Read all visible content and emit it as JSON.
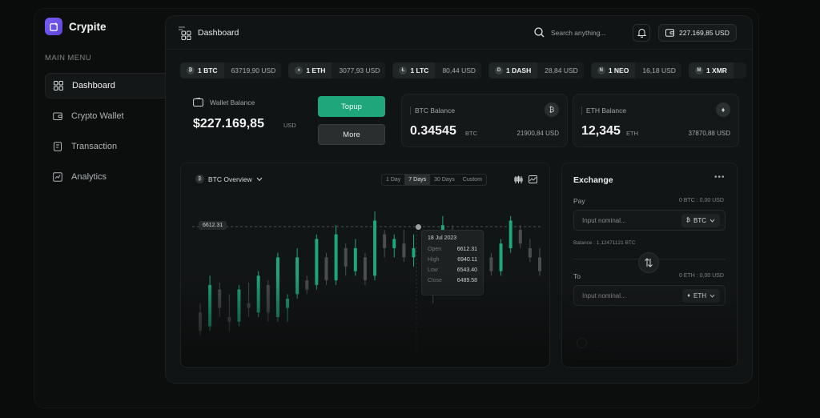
{
  "brand": {
    "name": "Crypite"
  },
  "sidebar": {
    "section_title": "MAIN MENU",
    "items": [
      {
        "label": "Dashboard",
        "icon": "grid-icon",
        "active": true
      },
      {
        "label": "Crypto Wallet",
        "icon": "wallet-icon",
        "active": false
      },
      {
        "label": "Transaction",
        "icon": "receipt-icon",
        "active": false
      },
      {
        "label": "Analytics",
        "icon": "chart-icon",
        "active": false
      }
    ]
  },
  "header": {
    "title": "Dashboard",
    "search_placeholder": "Search anything...",
    "wallet_amount": "227.169,85 USD"
  },
  "ticker": [
    {
      "coin": "1 BTC",
      "symbol": "₿",
      "price": "63719,90 USD"
    },
    {
      "coin": "1 ETH",
      "symbol": "♦",
      "price": "3077,93 USD"
    },
    {
      "coin": "1 LTC",
      "symbol": "Ł",
      "price": "80,44 USD"
    },
    {
      "coin": "1 DASH",
      "symbol": "D",
      "price": "28,84 USD"
    },
    {
      "coin": "1 NEO",
      "symbol": "N",
      "price": "16,18 USD"
    },
    {
      "coin": "1 XMR",
      "symbol": "M",
      "price": ""
    }
  ],
  "wallet_card": {
    "label": "Wallet Balance",
    "value": "$227.169,85",
    "unit": "USD",
    "topup_label": "Topup",
    "more_label": "More"
  },
  "btc_card": {
    "label": "BTC Balance",
    "value": "0.34545",
    "unit": "BTC",
    "usd": "21900,84 USD"
  },
  "eth_card": {
    "label": "ETH Balance",
    "value": "12,345",
    "unit": "ETH",
    "usd": "37870,88 USD"
  },
  "overview": {
    "selector_label": "BTC Overview",
    "ranges": [
      "1 Day",
      "7 Days",
      "30 Days",
      "Custom"
    ],
    "active_range": "7 Days",
    "price_marker": "6612.31",
    "tooltip": {
      "date": "18 Jul 2023",
      "rows": [
        {
          "label": "Open",
          "value": "6612.31"
        },
        {
          "label": "High",
          "value": "6940.11"
        },
        {
          "label": "Low",
          "value": "6543.40"
        },
        {
          "label": "Close",
          "value": "6489.58"
        }
      ]
    }
  },
  "chart_data": {
    "type": "candlestick",
    "series_colors": {
      "up": "#1fa67a",
      "down": "#4a4e4f"
    },
    "candles": [
      {
        "o": 6480,
        "h": 6500,
        "l": 6430,
        "c": 6440
      },
      {
        "o": 6450,
        "h": 6560,
        "l": 6440,
        "c": 6540
      },
      {
        "o": 6530,
        "h": 6545,
        "l": 6470,
        "c": 6490
      },
      {
        "o": 6470,
        "h": 6520,
        "l": 6440,
        "c": 6460
      },
      {
        "o": 6460,
        "h": 6540,
        "l": 6450,
        "c": 6530
      },
      {
        "o": 6500,
        "h": 6545,
        "l": 6470,
        "c": 6490
      },
      {
        "o": 6480,
        "h": 6570,
        "l": 6470,
        "c": 6560
      },
      {
        "o": 6540,
        "h": 6550,
        "l": 6460,
        "c": 6480
      },
      {
        "o": 6470,
        "h": 6610,
        "l": 6460,
        "c": 6600
      },
      {
        "o": 6490,
        "h": 6520,
        "l": 6460,
        "c": 6510
      },
      {
        "o": 6520,
        "h": 6620,
        "l": 6510,
        "c": 6600
      },
      {
        "o": 6550,
        "h": 6560,
        "l": 6520,
        "c": 6530
      },
      {
        "o": 6540,
        "h": 6650,
        "l": 6530,
        "c": 6640
      },
      {
        "o": 6600,
        "h": 6610,
        "l": 6540,
        "c": 6550
      },
      {
        "o": 6550,
        "h": 6670,
        "l": 6540,
        "c": 6650
      },
      {
        "o": 6620,
        "h": 6630,
        "l": 6560,
        "c": 6580
      },
      {
        "o": 6570,
        "h": 6640,
        "l": 6560,
        "c": 6620
      },
      {
        "o": 6600,
        "h": 6610,
        "l": 6540,
        "c": 6550
      },
      {
        "o": 6560,
        "h": 6700,
        "l": 6550,
        "c": 6680
      },
      {
        "o": 6650,
        "h": 6660,
        "l": 6600,
        "c": 6620
      },
      {
        "o": 6620,
        "h": 6650,
        "l": 6600,
        "c": 6640
      },
      {
        "o": 6630,
        "h": 6660,
        "l": 6590,
        "c": 6600
      },
      {
        "o": 6600,
        "h": 6650,
        "l": 6580,
        "c": 6620
      },
      {
        "o": 6640,
        "h": 6650,
        "l": 6590,
        "c": 6600
      },
      {
        "o": 6600,
        "h": 6620,
        "l": 6500,
        "c": 6520
      },
      {
        "o": 6540,
        "h": 6690,
        "l": 6530,
        "c": 6670
      },
      {
        "o": 6660,
        "h": 6670,
        "l": 6590,
        "c": 6600
      },
      {
        "o": 6590,
        "h": 6640,
        "l": 6570,
        "c": 6630
      },
      {
        "o": 6620,
        "h": 6630,
        "l": 6570,
        "c": 6580
      },
      {
        "o": 6580,
        "h": 6650,
        "l": 6570,
        "c": 6640
      },
      {
        "o": 6600,
        "h": 6610,
        "l": 6560,
        "c": 6570
      },
      {
        "o": 6570,
        "h": 6640,
        "l": 6560,
        "c": 6630
      },
      {
        "o": 6620,
        "h": 6690,
        "l": 6610,
        "c": 6680
      },
      {
        "o": 6660,
        "h": 6670,
        "l": 6620,
        "c": 6630
      },
      {
        "o": 6620,
        "h": 6640,
        "l": 6590,
        "c": 6600
      },
      {
        "o": 6600,
        "h": 6620,
        "l": 6560,
        "c": 6570
      }
    ]
  },
  "exchange": {
    "title": "Exchange",
    "pay_label": "Pay",
    "pay_right": "0 BTC : 0,00 USD",
    "pay_placeholder": "Input nominal...",
    "pay_coin": "BTC",
    "balance": "Balance : 1.12471121 BTC",
    "to_label": "To",
    "to_right": "0 ETH : 0,00 USD",
    "to_placeholder": "Input nominal...",
    "to_coin": "ETH",
    "note": "..."
  }
}
